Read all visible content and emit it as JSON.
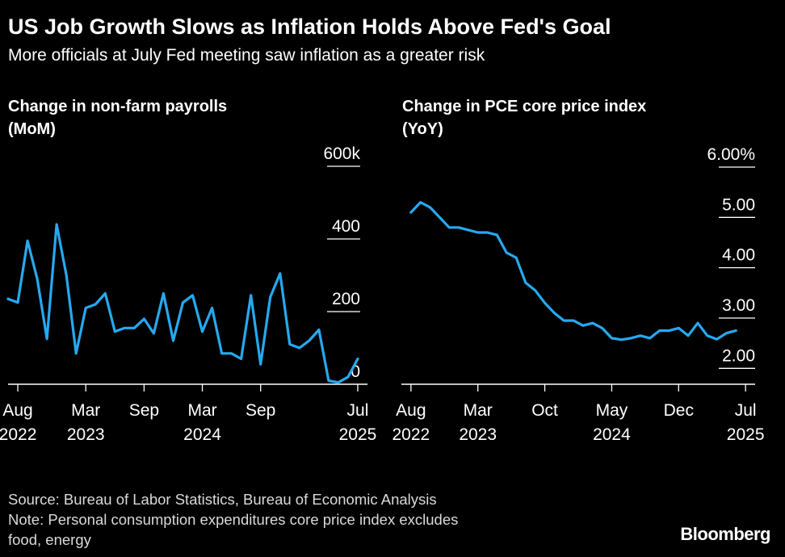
{
  "header": {
    "title": "US Job Growth Slows as Inflation Holds Above Fed's Goal",
    "subtitle": "More officials at July Fed meeting saw inflation as a greater risk"
  },
  "footer": {
    "source": "Source: Bureau of Labor Statistics, Bureau of Economic Analysis",
    "note_line1": "Note: Personal consumption expenditures core price index excludes",
    "note_line2": "food, energy",
    "brand": "Bloomberg"
  },
  "colors": {
    "line": "#26a9f0",
    "background": "#000000",
    "axis": "#ffffff"
  },
  "chart_data": [
    {
      "type": "line",
      "title": "Change in non-farm payrolls (MoM)",
      "title_line1": "Change in non-farm payrolls",
      "title_line2": "(MoM)",
      "ylim": [
        0,
        600
      ],
      "y_ticks": [
        0,
        200,
        400,
        600
      ],
      "y_tick_labels": [
        "0",
        "200",
        "400",
        "600k"
      ],
      "x_ticks": [
        {
          "month": "2022-08",
          "line1": "Aug",
          "line2": "2022"
        },
        {
          "month": "2023-03",
          "line1": "Mar",
          "line2": "2023"
        },
        {
          "month": "2023-09",
          "line1": "Sep",
          "line2": ""
        },
        {
          "month": "2024-03",
          "line1": "Mar",
          "line2": "2024"
        },
        {
          "month": "2024-09",
          "line1": "Sep",
          "line2": ""
        },
        {
          "month": "2025-07",
          "line1": "Jul",
          "line2": "2025"
        }
      ],
      "x_range": [
        "2022-07",
        "2025-08"
      ],
      "series": [
        {
          "x": [
            "2022-07",
            "2022-08",
            "2022-09",
            "2022-10",
            "2022-11",
            "2022-12",
            "2023-01",
            "2023-02",
            "2023-03",
            "2023-04",
            "2023-05",
            "2023-06",
            "2023-07",
            "2023-08",
            "2023-09",
            "2023-10",
            "2023-11",
            "2023-12",
            "2024-01",
            "2024-02",
            "2024-03",
            "2024-04",
            "2024-05",
            "2024-06",
            "2024-07",
            "2024-08",
            "2024-09",
            "2024-10",
            "2024-11",
            "2024-12",
            "2025-01",
            "2025-02",
            "2025-03",
            "2025-04",
            "2025-05",
            "2025-06",
            "2025-07"
          ],
          "values": [
            235,
            225,
            395,
            290,
            125,
            440,
            300,
            85,
            210,
            220,
            250,
            145,
            155,
            155,
            180,
            140,
            250,
            120,
            225,
            245,
            145,
            210,
            85,
            85,
            70,
            245,
            55,
            240,
            305,
            110,
            100,
            120,
            150,
            10,
            5,
            20,
            70
          ]
        }
      ]
    },
    {
      "type": "line",
      "title": "Change in PCE core price index (YoY)",
      "title_line1": "Change in PCE core price index",
      "title_line2": "(YoY)",
      "ylim": [
        1.7,
        6.0
      ],
      "y_ticks": [
        2,
        3,
        4,
        5,
        6
      ],
      "y_tick_labels": [
        "2.00",
        "3.00",
        "4.00",
        "5.00",
        "6.00%"
      ],
      "x_ticks": [
        {
          "month": "2022-08",
          "line1": "Aug",
          "line2": "2022"
        },
        {
          "month": "2023-03",
          "line1": "Mar",
          "line2": "2023"
        },
        {
          "month": "2023-10",
          "line1": "Oct",
          "line2": ""
        },
        {
          "month": "2024-05",
          "line1": "May",
          "line2": "2024"
        },
        {
          "month": "2024-12",
          "line1": "Dec",
          "line2": ""
        },
        {
          "month": "2025-07",
          "line1": "Jul",
          "line2": "2025"
        }
      ],
      "x_range": [
        "2022-07",
        "2025-08"
      ],
      "series": [
        {
          "x": [
            "2022-08",
            "2022-09",
            "2022-10",
            "2022-11",
            "2022-12",
            "2023-01",
            "2023-02",
            "2023-03",
            "2023-04",
            "2023-05",
            "2023-06",
            "2023-07",
            "2023-08",
            "2023-09",
            "2023-10",
            "2023-11",
            "2023-12",
            "2024-01",
            "2024-02",
            "2024-03",
            "2024-04",
            "2024-05",
            "2024-06",
            "2024-07",
            "2024-08",
            "2024-09",
            "2024-10",
            "2024-11",
            "2024-12",
            "2025-01",
            "2025-02",
            "2025-03",
            "2025-04",
            "2025-05",
            "2025-06"
          ],
          "values": [
            5.1,
            5.3,
            5.2,
            5.0,
            4.8,
            4.8,
            4.75,
            4.7,
            4.7,
            4.65,
            4.3,
            4.2,
            3.7,
            3.55,
            3.3,
            3.1,
            2.95,
            2.95,
            2.85,
            2.9,
            2.8,
            2.6,
            2.57,
            2.6,
            2.65,
            2.6,
            2.75,
            2.75,
            2.8,
            2.65,
            2.9,
            2.65,
            2.58,
            2.7,
            2.75
          ]
        }
      ]
    }
  ]
}
